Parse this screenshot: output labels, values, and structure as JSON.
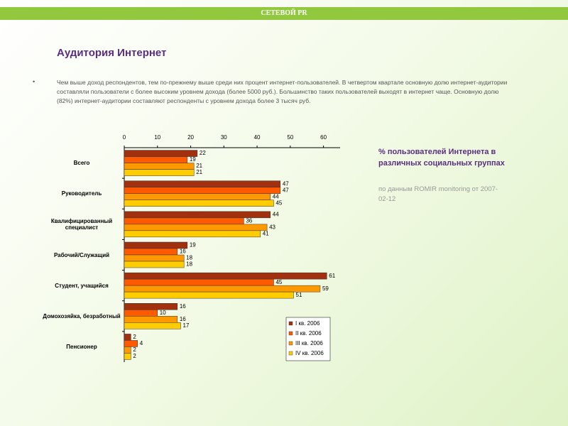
{
  "header": "СЕТЕВОЙ PR",
  "title": "Аудитория Интернет",
  "bullet": "Чем выше доход респондентов, тем по-прежнему выше среди них процент интернет-пользователей. В четвертом квартале основную долю интернет-аудитории составляли пользователи с более высоким уровнем дохода (более 5000 руб.). Большинство таких пользователей выходят в интернет чаще. Основную долю (82%) интернет-аудитории составляют респонденты с уровнем дохода более 3 тысяч руб.",
  "side_title": "% пользователей Интернета в различных социальных группах",
  "side_source": "по данным ROMIR monitoring от 2007-02-12",
  "chart_data": {
    "type": "hbar",
    "categories": [
      "Всего",
      "Руководитель",
      "Квалифицированный специалист",
      "Рабочий/Служащий",
      "Студент, учащийся",
      "Домохозяйка, безработный",
      "Пенсионер"
    ],
    "series": [
      {
        "name": "I кв. 2006",
        "color": "#a0300e",
        "values": [
          22,
          47,
          44,
          19,
          61,
          16,
          2
        ]
      },
      {
        "name": "II кв. 2006",
        "color": "#ff5a00",
        "values": [
          19,
          47,
          36,
          16,
          45,
          10,
          4
        ]
      },
      {
        "name": "III кв. 2006",
        "color": "#ff9900",
        "values": [
          21,
          44,
          43,
          18,
          59,
          16,
          2
        ]
      },
      {
        "name": "IV кв. 2006",
        "color": "#ffcc00",
        "values": [
          21,
          45,
          41,
          18,
          51,
          17,
          2
        ]
      }
    ],
    "xlim": [
      0,
      65
    ],
    "xticks": [
      0,
      10,
      20,
      30,
      40,
      50,
      60
    ],
    "legend": "lower-right"
  }
}
